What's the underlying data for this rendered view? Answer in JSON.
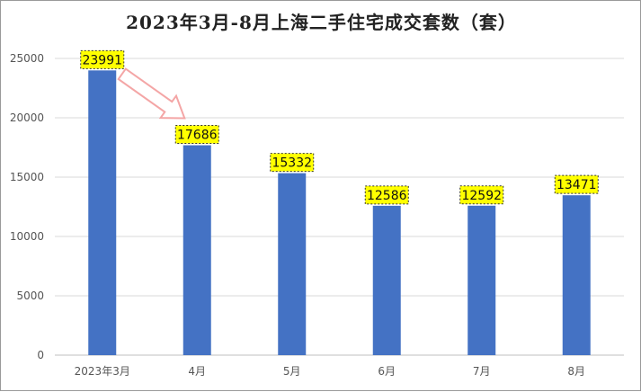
{
  "chart_data": {
    "type": "bar",
    "title": "2023年3月-8月上海二手住宅成交套数（套）",
    "xlabel": "",
    "ylabel": "",
    "categories": [
      "2023年3月",
      "4月",
      "5月",
      "6月",
      "7月",
      "8月"
    ],
    "values": [
      23991,
      17686,
      15332,
      12586,
      12592,
      13471
    ],
    "ylim": [
      0,
      25000
    ],
    "yticks": [
      0,
      5000,
      10000,
      15000,
      20000,
      25000
    ],
    "grid": true,
    "legend": "none",
    "annotation": "arrow-from-first-to-second-bar",
    "colors": {
      "bar": "#4472C4",
      "label_bg": "#FFFF00",
      "arrow": "#F4A6A6",
      "grid": "#D9D9D9"
    }
  }
}
